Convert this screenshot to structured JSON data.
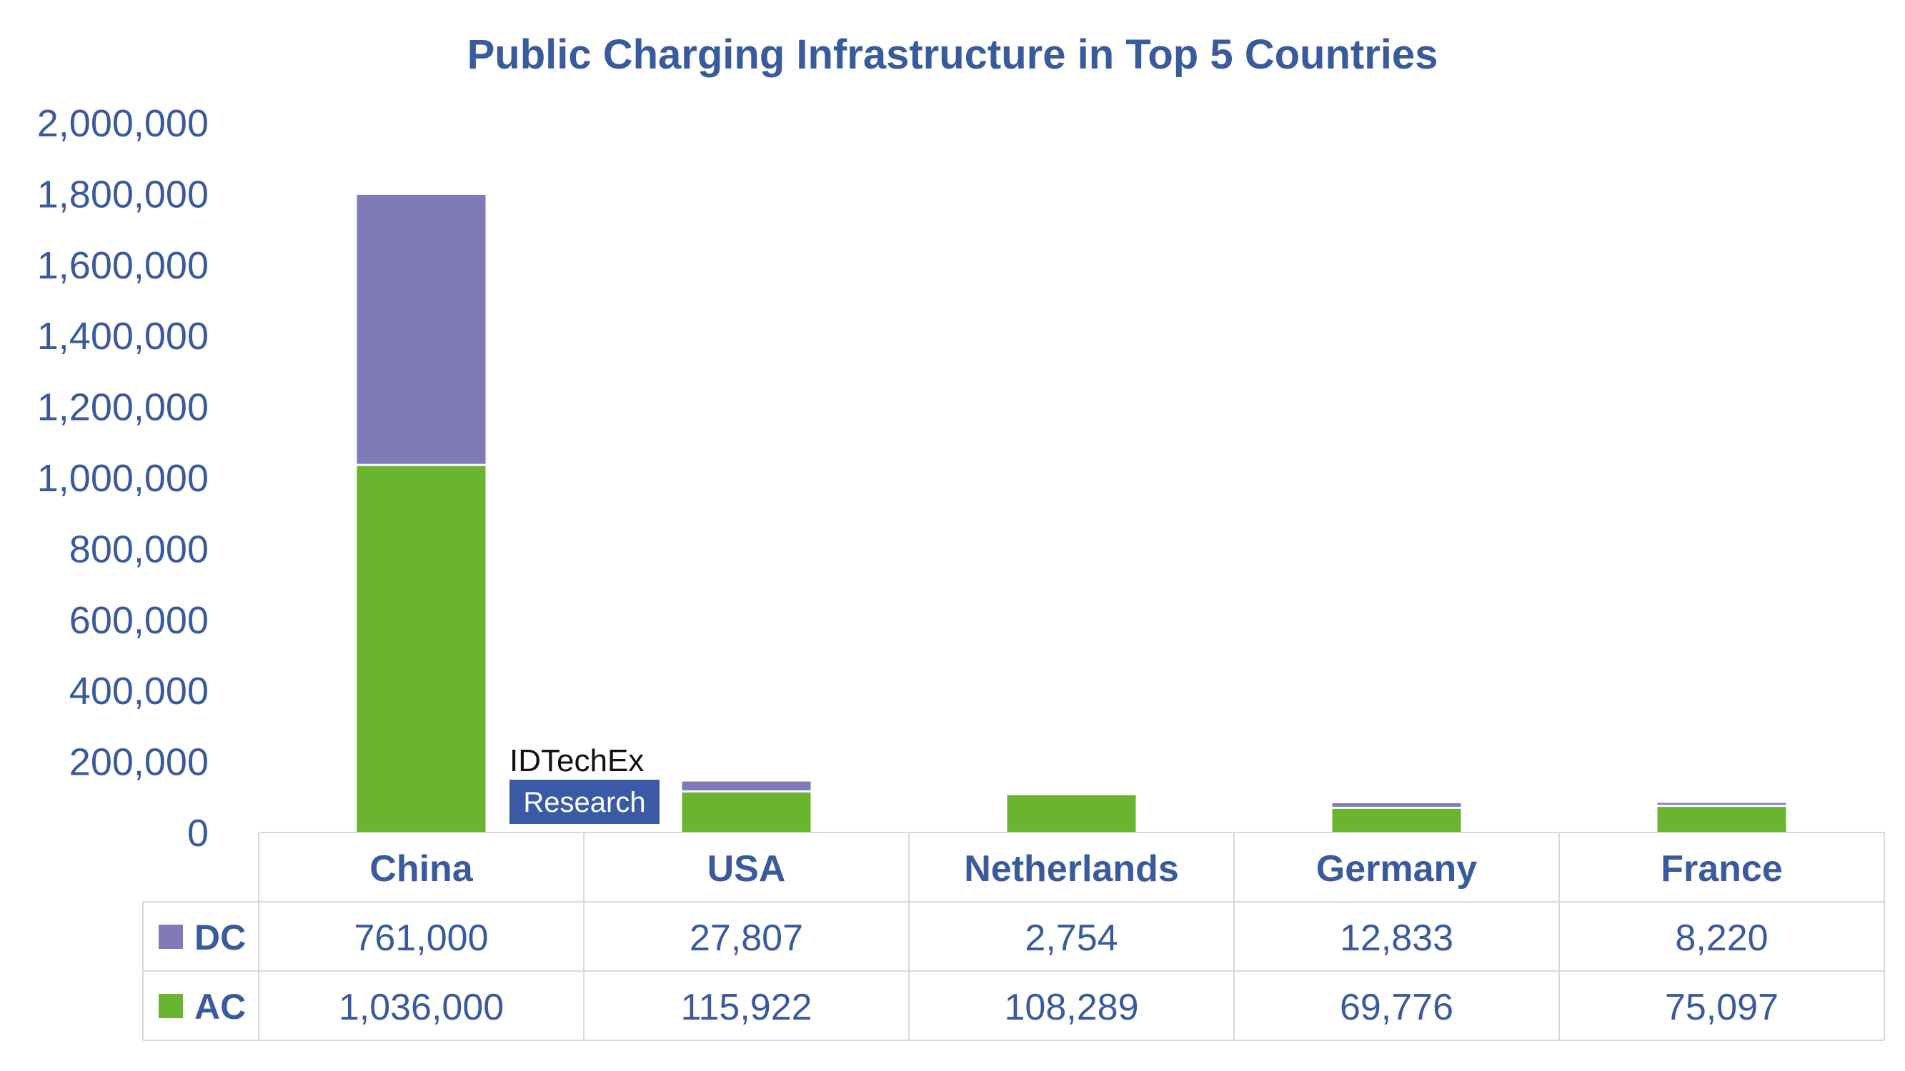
{
  "chart_data": {
    "type": "bar",
    "stacked": true,
    "title": "Public Charging Infrastructure in Top 5 Countries",
    "categories": [
      "China",
      "USA",
      "Netherlands",
      "Germany",
      "France"
    ],
    "series": [
      {
        "name": "DC",
        "color": "#7f7bb8",
        "values": [
          761000,
          27807,
          2754,
          12833,
          8220
        ],
        "labels": [
          "761,000",
          "27,807",
          "2,754",
          "12,833",
          "8,220"
        ]
      },
      {
        "name": "AC",
        "color": "#6ab42f",
        "values": [
          1036000,
          115922,
          108289,
          69776,
          75097
        ],
        "labels": [
          "1,036,000",
          "115,922",
          "108,289",
          "69,776",
          "75,097"
        ]
      }
    ],
    "ylim": [
      0,
      2000000
    ],
    "yticks": [
      0,
      200000,
      400000,
      600000,
      800000,
      1000000,
      1200000,
      1400000,
      1600000,
      1800000,
      2000000
    ],
    "ytick_labels": [
      "0",
      "200,000",
      "400,000",
      "600,000",
      "800,000",
      "1,000,000",
      "1,200,000",
      "1,400,000",
      "1,600,000",
      "1,800,000",
      "2,000,000"
    ],
    "data_table": true,
    "grid": false
  },
  "watermark": {
    "line1": "IDTechEx",
    "line2": "Research"
  }
}
